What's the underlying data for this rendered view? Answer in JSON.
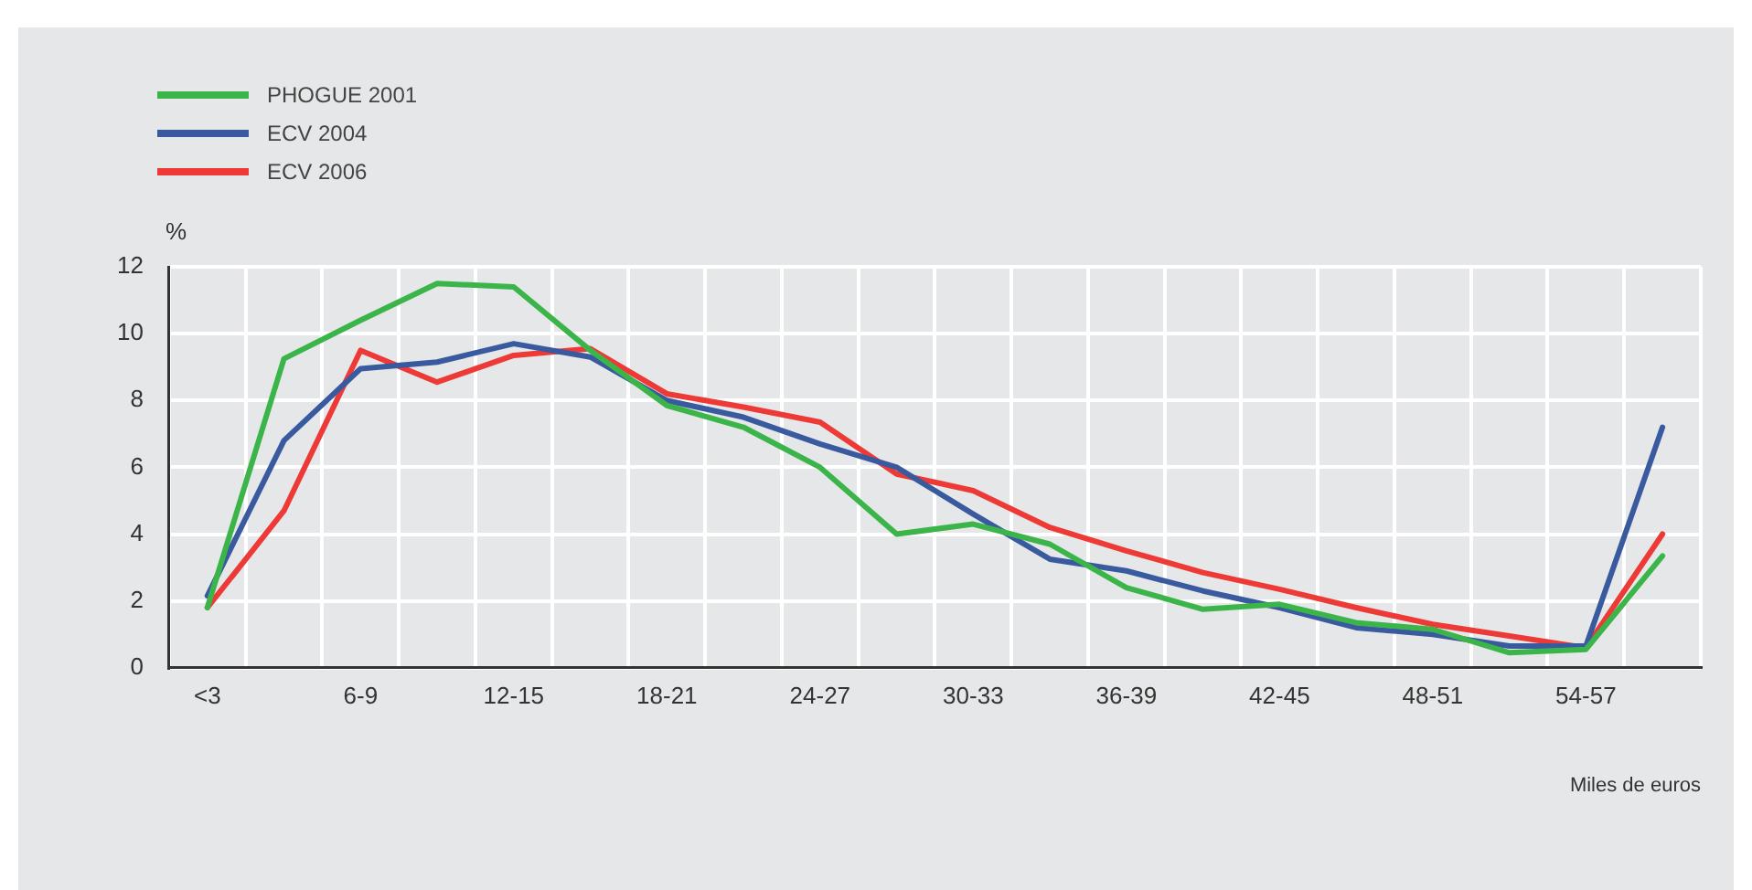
{
  "chart_data": {
    "type": "line",
    "ylabel": "%",
    "xlabel": "Miles de euros",
    "categories": [
      "<3",
      null,
      "6-9",
      null,
      "12-15",
      null,
      "18-21",
      null,
      "24-27",
      null,
      "30-33",
      null,
      "36-39",
      null,
      "42-45",
      null,
      "48-51",
      null,
      "54-57",
      null
    ],
    "series": [
      {
        "name": "PHOGUE 2001",
        "color": "#3bb54a",
        "values": [
          1.8,
          9.25,
          10.4,
          11.5,
          11.4,
          9.5,
          7.85,
          7.2,
          6.0,
          4.0,
          4.3,
          3.7,
          2.4,
          1.75,
          1.9,
          1.35,
          1.15,
          0.45,
          0.55,
          3.35
        ]
      },
      {
        "name": "ECV 2004",
        "color": "#3a5a9f",
        "values": [
          2.15,
          6.8,
          8.95,
          9.15,
          9.7,
          9.3,
          8.0,
          7.5,
          6.7,
          6.0,
          4.6,
          3.25,
          2.9,
          2.3,
          1.8,
          1.2,
          1.0,
          0.65,
          0.65,
          7.2
        ]
      },
      {
        "name": "ECV 2006",
        "color": "#ee3a36",
        "values": [
          1.8,
          4.7,
          9.5,
          8.55,
          9.35,
          9.55,
          8.2,
          7.8,
          7.35,
          5.8,
          5.3,
          4.2,
          3.5,
          2.85,
          2.35,
          1.8,
          1.3,
          0.95,
          0.6,
          4.0
        ]
      }
    ],
    "ylim": [
      0,
      12
    ],
    "yticks": [
      0,
      2,
      4,
      6,
      8,
      10,
      12
    ],
    "grid": true,
    "legend": "top left",
    "marker": "none",
    "line_style": "solid"
  }
}
